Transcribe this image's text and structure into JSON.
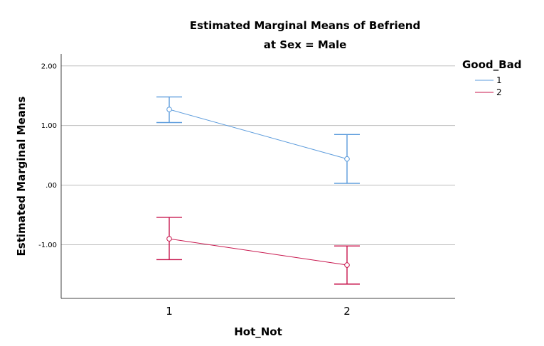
{
  "chart_data": {
    "type": "line",
    "title": "Estimated Marginal Means of Befriend",
    "subtitle": "at Sex = Male",
    "xlabel": "Hot_Not",
    "ylabel": "Estimated Marginal Means",
    "categories": [
      "1",
      "2"
    ],
    "ylim": [
      -1.9,
      2.2
    ],
    "yticks": [
      2.0,
      1.0,
      0.0,
      -1.0
    ],
    "ytick_labels": [
      "2.00",
      "1.00",
      ".00",
      "-1.00"
    ],
    "grid": "horizontal",
    "legend": {
      "title": "Good_Bad",
      "position": "right"
    },
    "series": [
      {
        "name": "1",
        "color": "#5b9bdc",
        "values": [
          1.27,
          0.44
        ],
        "error_upper": [
          1.48,
          0.85
        ],
        "error_lower": [
          1.05,
          0.03
        ]
      },
      {
        "name": "2",
        "color": "#c8174e",
        "values": [
          -0.9,
          -1.34
        ],
        "error_upper": [
          -0.54,
          -1.02
        ],
        "error_lower": [
          -1.25,
          -1.66
        ]
      }
    ]
  }
}
